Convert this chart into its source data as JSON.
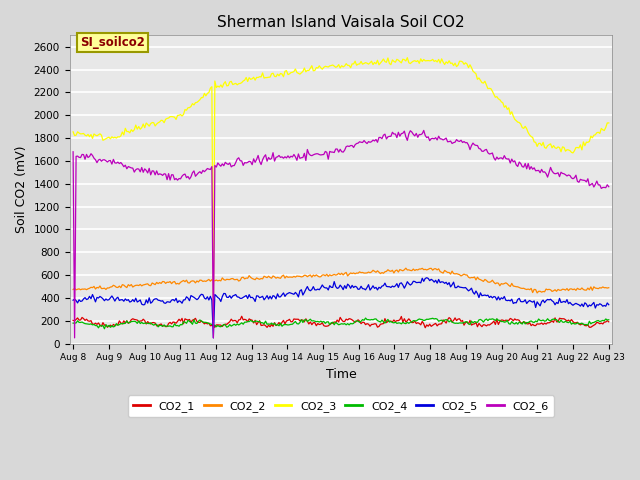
{
  "title": "Sherman Island Vaisala Soil CO2",
  "xlabel": "Time",
  "ylabel": "Soil CO2 (mV)",
  "ylim": [
    0,
    2700
  ],
  "annotation_text": "SI_soilco2",
  "legend_entries": [
    "CO2_1",
    "CO2_2",
    "CO2_3",
    "CO2_4",
    "CO2_5",
    "CO2_6"
  ],
  "line_colors": [
    "#dd0000",
    "#ff8800",
    "#ffff00",
    "#00bb00",
    "#0000dd",
    "#bb00bb"
  ],
  "fig_bg_color": "#d8d8d8",
  "plot_bg_color": "#e8e8e8",
  "yticks": [
    0,
    200,
    400,
    600,
    800,
    1000,
    1200,
    1400,
    1600,
    1800,
    2000,
    2200,
    2400,
    2600
  ],
  "seed": 42
}
